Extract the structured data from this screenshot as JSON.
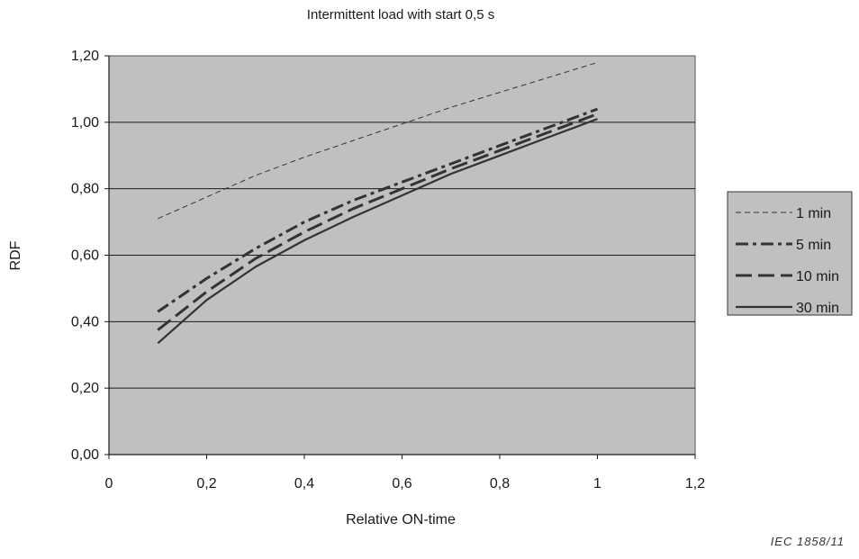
{
  "chart_data": {
    "type": "line",
    "title": "Intermittent load with start 0,5 s",
    "xlabel": "Relative ON-time",
    "ylabel": "RDF",
    "xlim": [
      0,
      1.2
    ],
    "ylim": [
      0,
      1.2
    ],
    "x_ticks": [
      0,
      0.2,
      0.4,
      0.6,
      0.8,
      1,
      1.2
    ],
    "x_tick_labels": [
      "0",
      "0,2",
      "0,4",
      "0,6",
      "0,8",
      "1",
      "1,2"
    ],
    "y_ticks": [
      0,
      0.2,
      0.4,
      0.6,
      0.8,
      1.0,
      1.2
    ],
    "y_tick_labels": [
      "0,00",
      "0,20",
      "0,40",
      "0,60",
      "0,80",
      "1,00",
      "1,20"
    ],
    "grid": "horizontal",
    "legend_position": "right",
    "series": [
      {
        "name": "1 min",
        "style": "thin-dash",
        "x": [
          0.1,
          0.2,
          0.3,
          0.4,
          0.5,
          0.6,
          0.7,
          0.8,
          0.9,
          1.0
        ],
        "y": [
          0.71,
          0.775,
          0.84,
          0.895,
          0.945,
          0.995,
          1.045,
          1.09,
          1.135,
          1.18
        ]
      },
      {
        "name": "5 min",
        "style": "dash-dot",
        "x": [
          0.1,
          0.2,
          0.3,
          0.4,
          0.5,
          0.6,
          0.7,
          0.8,
          0.9,
          1.0
        ],
        "y": [
          0.43,
          0.53,
          0.62,
          0.7,
          0.765,
          0.82,
          0.875,
          0.93,
          0.985,
          1.04
        ]
      },
      {
        "name": "10 min",
        "style": "long-dash",
        "x": [
          0.1,
          0.2,
          0.3,
          0.4,
          0.5,
          0.6,
          0.7,
          0.8,
          0.9,
          1.0
        ],
        "y": [
          0.375,
          0.49,
          0.59,
          0.67,
          0.74,
          0.8,
          0.86,
          0.915,
          0.97,
          1.025
        ]
      },
      {
        "name": "30 min",
        "style": "solid",
        "x": [
          0.1,
          0.2,
          0.3,
          0.4,
          0.5,
          0.6,
          0.7,
          0.8,
          0.9,
          1.0
        ],
        "y": [
          0.335,
          0.465,
          0.565,
          0.645,
          0.715,
          0.78,
          0.845,
          0.9,
          0.955,
          1.01
        ]
      }
    ],
    "plot_background": "#c0c0c0",
    "line_color": "#333333"
  },
  "figure_id": "IEC   1858/11"
}
